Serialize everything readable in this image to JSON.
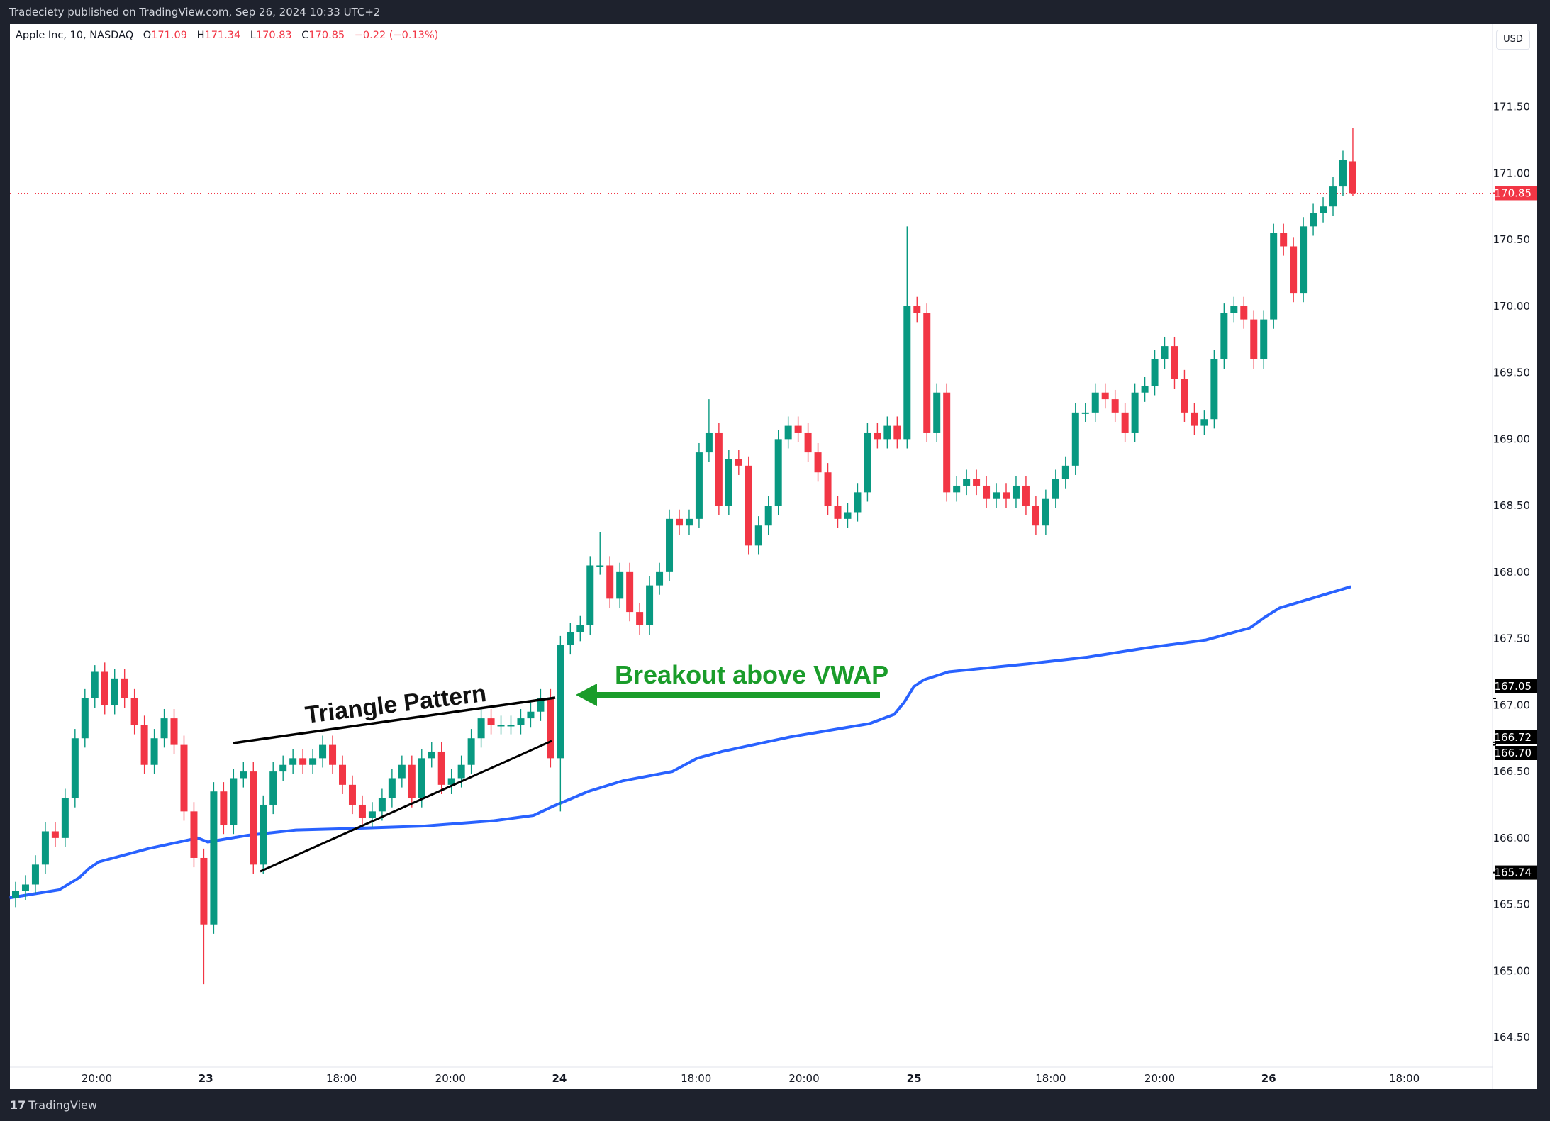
{
  "topbar": {
    "publisher_text": "Tradeciety published on TradingView.com, Sep 26, 2024 10:33 UTC+2"
  },
  "legend": {
    "symbol": "Apple Inc, 10, NASDAQ",
    "o_label": "O",
    "o": "171.09",
    "h_label": "H",
    "h": "171.34",
    "l_label": "L",
    "l": "170.83",
    "c_label": "C",
    "c": "170.85",
    "change": "−0.22 (−0.13%)"
  },
  "currency_button": "USD",
  "footer": {
    "logo_text": "TradingView",
    "logo_mark": "17"
  },
  "colors": {
    "up": "#089981",
    "down": "#f23645",
    "vwap": "#2962ff",
    "annotation_green": "#1a9c2a",
    "last_price": "#f23645",
    "badge": "#000000"
  },
  "annotations": {
    "triangle": "Triangle Pattern",
    "breakout": "Breakout above VWAP"
  },
  "chart_data": {
    "type": "candlestick",
    "symbol": "AAPL",
    "interval": "10",
    "y_ticks": [
      "164.50",
      "165.00",
      "165.50",
      "166.00",
      "166.50",
      "167.00",
      "167.50",
      "168.00",
      "168.50",
      "169.00",
      "169.50",
      "170.00",
      "170.50",
      "171.00",
      "171.50"
    ],
    "ylim": [
      164.3,
      171.8
    ],
    "x_tick_labels": [
      "20:00",
      "23",
      "18:00",
      "20:00",
      "24",
      "18:00",
      "20:00",
      "25",
      "18:00",
      "20:00",
      "26",
      "18:00"
    ],
    "closes": [
      165.6,
      165.65,
      165.8,
      166.05,
      166.0,
      166.3,
      166.75,
      167.05,
      167.25,
      167.0,
      167.2,
      167.05,
      166.85,
      166.55,
      166.75,
      166.9,
      166.7,
      166.2,
      165.85,
      165.35,
      166.35,
      166.1,
      166.45,
      166.5,
      165.8,
      166.25,
      166.5,
      166.55,
      166.6,
      166.55,
      166.6,
      166.7,
      166.55,
      166.4,
      166.25,
      166.15,
      166.2,
      166.3,
      166.45,
      166.55,
      166.3,
      166.6,
      166.65,
      166.4,
      166.45,
      166.55,
      166.75,
      166.9,
      166.85,
      166.85,
      166.85,
      166.9,
      166.95,
      167.05,
      166.6,
      167.45,
      167.55,
      167.6,
      168.05,
      168.05,
      167.8,
      168.0,
      167.7,
      167.6,
      167.9,
      168.0,
      168.4,
      168.35,
      168.4,
      168.9,
      169.05,
      168.5,
      168.85,
      168.8,
      168.2,
      168.35,
      168.5,
      169.0,
      169.1,
      169.05,
      168.9,
      168.75,
      168.5,
      168.4,
      168.45,
      168.6,
      169.05,
      169.0,
      169.1,
      169.0,
      170.0,
      169.95,
      169.05,
      169.35,
      168.6,
      168.65,
      168.7,
      168.65,
      168.55,
      168.6,
      168.55,
      168.65,
      168.5,
      168.35,
      168.55,
      168.7,
      168.8,
      169.2,
      169.2,
      169.35,
      169.3,
      169.2,
      169.05,
      169.35,
      169.4,
      169.6,
      169.7,
      169.45,
      169.2,
      169.1,
      169.15,
      169.6,
      169.95,
      170.0,
      169.9,
      169.6,
      169.9,
      170.55,
      170.45,
      170.1,
      170.6,
      170.7,
      170.75,
      170.9,
      171.1,
      170.85
    ],
    "notable_wicks": {
      "8": {
        "high": 167.3
      },
      "19": {
        "low": 164.9
      },
      "55": {
        "low": 166.2
      },
      "59": {
        "high": 168.3
      },
      "70": {
        "high": 169.3
      },
      "90": {
        "high": 170.6
      },
      "135": {
        "open": 171.09,
        "high": 171.34,
        "low": 170.83
      }
    },
    "vwap": [
      [
        -0.6,
        165.55
      ],
      [
        4.4,
        165.61
      ],
      [
        6.4,
        165.7
      ],
      [
        7.4,
        165.77
      ],
      [
        8.4,
        165.82
      ],
      [
        13.4,
        165.92
      ],
      [
        18.4,
        166.0
      ],
      [
        19.4,
        165.97
      ],
      [
        23.4,
        166.02
      ],
      [
        28.3,
        166.06
      ],
      [
        33.3,
        166.07
      ],
      [
        41.3,
        166.09
      ],
      [
        48.3,
        166.13
      ],
      [
        52.3,
        166.17
      ],
      [
        54.3,
        166.24
      ],
      [
        57.8,
        166.35
      ],
      [
        61.3,
        166.43
      ],
      [
        66.3,
        166.5
      ],
      [
        68.8,
        166.6
      ],
      [
        71.3,
        166.65
      ],
      [
        78.2,
        166.76
      ],
      [
        86.2,
        166.86
      ],
      [
        88.7,
        166.93
      ],
      [
        89.7,
        167.02
      ],
      [
        90.7,
        167.14
      ],
      [
        91.7,
        167.19
      ],
      [
        94.2,
        167.25
      ],
      [
        98.2,
        167.28
      ],
      [
        102.2,
        167.31
      ],
      [
        108.2,
        167.36
      ],
      [
        114.2,
        167.43
      ],
      [
        120.2,
        167.49
      ],
      [
        124.6,
        167.58
      ],
      [
        126.1,
        167.66
      ],
      [
        127.6,
        167.73
      ],
      [
        134.8,
        167.89
      ]
    ],
    "last_price": "170.85",
    "price_badges": [
      "167.05",
      "166.72",
      "166.70",
      "165.74"
    ],
    "grid": false
  }
}
